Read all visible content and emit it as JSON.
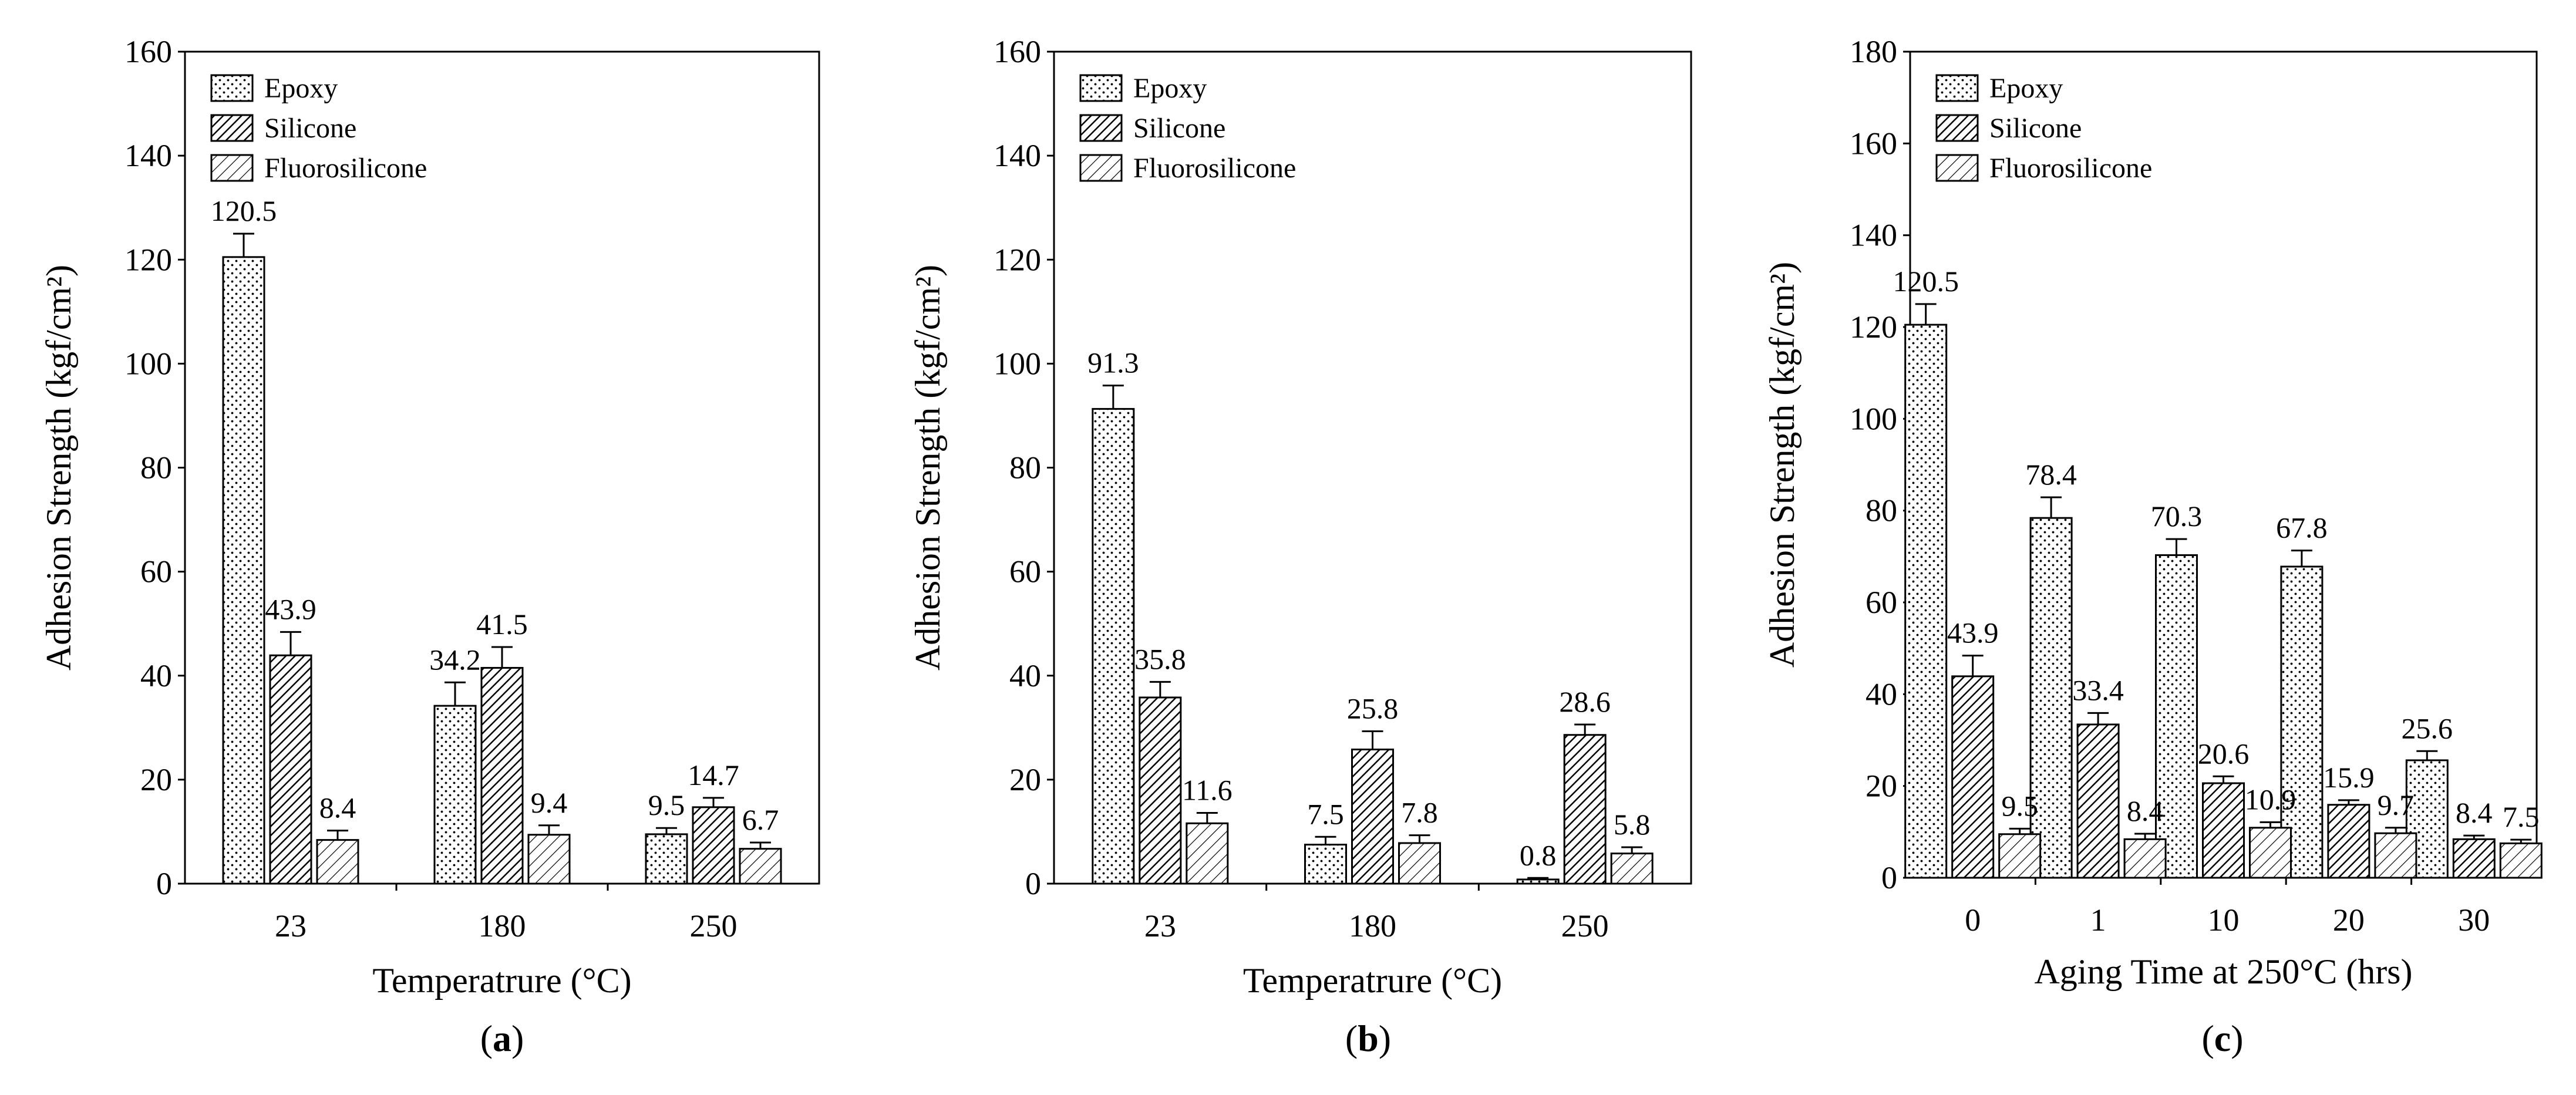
{
  "patterns": {
    "Epoxy": "dots",
    "Silicone": "dense-diagonal",
    "Fluorosilicone": "sparse-diagonal"
  },
  "colors": {
    "stroke": "#000000",
    "background": "#ffffff"
  },
  "chart_data": [
    {
      "type": "bar",
      "caption": "a",
      "title": "",
      "xlabel": "Temperatrure (°C)",
      "ylabel": "Adhesion Strength (kgf/cm²)",
      "ylim": [
        0,
        160
      ],
      "yticks": [
        0,
        20,
        40,
        60,
        80,
        100,
        120,
        140,
        160
      ],
      "categories": [
        "23",
        "180",
        "250"
      ],
      "legend": {
        "position": "top-left",
        "entries": [
          "Epoxy",
          "Silicone",
          "Fluorosilicone"
        ]
      },
      "series": [
        {
          "name": "Epoxy",
          "values": [
            120.5,
            34.2,
            9.5
          ],
          "labels": [
            "120.5",
            "34.2",
            "9.5"
          ],
          "errors": [
            4.5,
            4.5,
            1.2
          ]
        },
        {
          "name": "Silicone",
          "values": [
            43.9,
            41.5,
            14.7
          ],
          "labels": [
            "43.9",
            "41.5",
            "14.7"
          ],
          "errors": [
            4.5,
            4.0,
            1.8
          ]
        },
        {
          "name": "Fluorosilicone",
          "values": [
            8.4,
            9.4,
            6.7
          ],
          "labels": [
            "8.4",
            "9.4",
            "6.7"
          ],
          "errors": [
            1.8,
            1.8,
            1.2
          ]
        }
      ]
    },
    {
      "type": "bar",
      "caption": "b",
      "title": "",
      "xlabel": "Temperatrure (°C)",
      "ylabel": "Adhesion Strength (kgf/cm²)",
      "ylim": [
        0,
        160
      ],
      "yticks": [
        0,
        20,
        40,
        60,
        80,
        100,
        120,
        140,
        160
      ],
      "categories": [
        "23",
        "180",
        "250"
      ],
      "legend": {
        "position": "top-left",
        "entries": [
          "Epoxy",
          "Silicone",
          "Fluorosilicone"
        ]
      },
      "series": [
        {
          "name": "Epoxy",
          "values": [
            91.3,
            7.5,
            0.8
          ],
          "labels": [
            "91.3",
            "7.5",
            "0.8"
          ],
          "errors": [
            4.5,
            1.5,
            0.3
          ]
        },
        {
          "name": "Silicone",
          "values": [
            35.8,
            25.8,
            28.6
          ],
          "labels": [
            "35.8",
            "25.8",
            "28.6"
          ],
          "errors": [
            3.0,
            3.5,
            2.0
          ]
        },
        {
          "name": "Fluorosilicone",
          "values": [
            11.6,
            7.8,
            5.8
          ],
          "labels": [
            "11.6",
            "7.8",
            "5.8"
          ],
          "errors": [
            2.0,
            1.5,
            1.2
          ]
        }
      ]
    },
    {
      "type": "bar",
      "caption": "c",
      "title": "",
      "xlabel": "Aging Time at 250°C (hrs)",
      "ylabel": "Adhesion Strength (kgf/cm²)",
      "ylim": [
        0,
        180
      ],
      "yticks": [
        0,
        20,
        40,
        60,
        80,
        100,
        120,
        140,
        160,
        180
      ],
      "categories": [
        "0",
        "1",
        "10",
        "20",
        "30"
      ],
      "legend": {
        "position": "top-left",
        "entries": [
          "Epoxy",
          "Silicone",
          "Fluorosilicone"
        ]
      },
      "series": [
        {
          "name": "Epoxy",
          "values": [
            120.5,
            78.4,
            70.3,
            67.8,
            25.6
          ],
          "labels": [
            "120.5",
            "78.4",
            "70.3",
            "67.8",
            "25.6"
          ],
          "errors": [
            4.5,
            4.5,
            3.5,
            3.5,
            2.0
          ]
        },
        {
          "name": "Silicone",
          "values": [
            43.9,
            33.4,
            20.6,
            15.9,
            8.4
          ],
          "labels": [
            "43.9",
            "33.4",
            "20.6",
            "15.9",
            "8.4"
          ],
          "errors": [
            4.5,
            2.5,
            1.5,
            1.0,
            0.8
          ]
        },
        {
          "name": "Fluorosilicone",
          "values": [
            9.5,
            8.4,
            10.9,
            9.7,
            7.5
          ],
          "labels": [
            "9.5",
            "8.4",
            "10.9",
            "9.7",
            "7.5"
          ],
          "errors": [
            1.2,
            1.2,
            1.2,
            1.2,
            0.8
          ]
        }
      ]
    }
  ]
}
